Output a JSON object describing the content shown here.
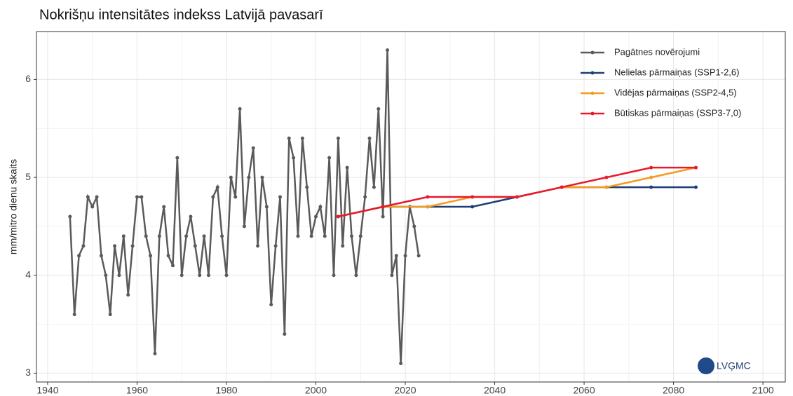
{
  "chart_data": {
    "type": "line",
    "title": "Nokrišņu intensitātes indekss Latvijā pavasarī",
    "y_label": "mm/mitro dienu skaits",
    "logo_text": "LVĢMC",
    "xlim": [
      1937.5,
      2105
    ],
    "xticks": [
      1940,
      1960,
      1980,
      2000,
      2020,
      2040,
      2060,
      2080,
      2100
    ],
    "ylim": [
      2.91,
      6.49
    ],
    "yticks": [
      3,
      4,
      5,
      6
    ],
    "grid": true,
    "legend": "top-right",
    "series": [
      {
        "name": "Pagātnes novērojumi",
        "color": "#5a5a5a",
        "x": [
          1945,
          1946,
          1947,
          1948,
          1949,
          1950,
          1951,
          1952,
          1953,
          1954,
          1955,
          1956,
          1957,
          1958,
          1959,
          1960,
          1961,
          1962,
          1963,
          1964,
          1965,
          1966,
          1967,
          1968,
          1969,
          1970,
          1971,
          1972,
          1973,
          1974,
          1975,
          1976,
          1977,
          1978,
          1979,
          1980,
          1981,
          1982,
          1983,
          1984,
          1985,
          1986,
          1987,
          1988,
          1989,
          1990,
          1991,
          1992,
          1993,
          1994,
          1995,
          1996,
          1997,
          1998,
          1999,
          2000,
          2001,
          2002,
          2003,
          2004,
          2005,
          2006,
          2007,
          2008,
          2009,
          2010,
          2011,
          2012,
          2013,
          2014,
          2015,
          2016,
          2017,
          2018,
          2019,
          2020,
          2021,
          2022,
          2023
        ],
        "values": [
          4.6,
          3.6,
          4.2,
          4.3,
          4.8,
          4.7,
          4.8,
          4.2,
          4.0,
          3.6,
          4.3,
          4.0,
          4.4,
          3.8,
          4.3,
          4.8,
          4.8,
          4.4,
          4.2,
          3.2,
          4.4,
          4.7,
          4.2,
          4.1,
          5.2,
          4.0,
          4.4,
          4.6,
          4.3,
          4.0,
          4.4,
          4.0,
          4.8,
          4.9,
          4.4,
          4.0,
          5.0,
          4.8,
          5.7,
          4.5,
          5.0,
          5.3,
          4.3,
          5.0,
          4.7,
          3.7,
          4.3,
          4.8,
          3.4,
          5.4,
          5.2,
          4.4,
          5.4,
          4.9,
          4.4,
          4.6,
          4.7,
          4.4,
          5.2,
          4.0,
          5.4,
          4.3,
          5.1,
          4.4,
          4.0,
          4.4,
          4.8,
          5.4,
          4.9,
          5.7,
          4.6,
          6.3,
          4.0,
          4.2,
          3.1,
          4.2,
          4.7,
          4.5,
          4.2
        ]
      },
      {
        "name": "Nelielas pārmaiņas (SSP1-2,6)",
        "color": "#1f3f73",
        "x": [
          2005,
          2015,
          2025,
          2035,
          2045,
          2055,
          2065,
          2075,
          2085
        ],
        "values": [
          4.6,
          4.7,
          4.7,
          4.7,
          4.8,
          4.9,
          4.9,
          4.9,
          4.9
        ]
      },
      {
        "name": "Vidējas pārmaiņas (SSP2-4,5)",
        "color": "#f39c1e",
        "x": [
          2005,
          2015,
          2025,
          2035,
          2045,
          2055,
          2065,
          2075,
          2085
        ],
        "values": [
          4.6,
          4.7,
          4.7,
          4.8,
          4.8,
          4.9,
          4.9,
          5.0,
          5.1
        ]
      },
      {
        "name": "Būtiskas pārmaiņas (SSP3-7,0)",
        "color": "#e8192c",
        "x": [
          2005,
          2015,
          2025,
          2035,
          2045,
          2055,
          2065,
          2075,
          2085
        ],
        "values": [
          4.6,
          4.7,
          4.8,
          4.8,
          4.8,
          4.9,
          5.0,
          5.1,
          5.1
        ]
      }
    ]
  }
}
